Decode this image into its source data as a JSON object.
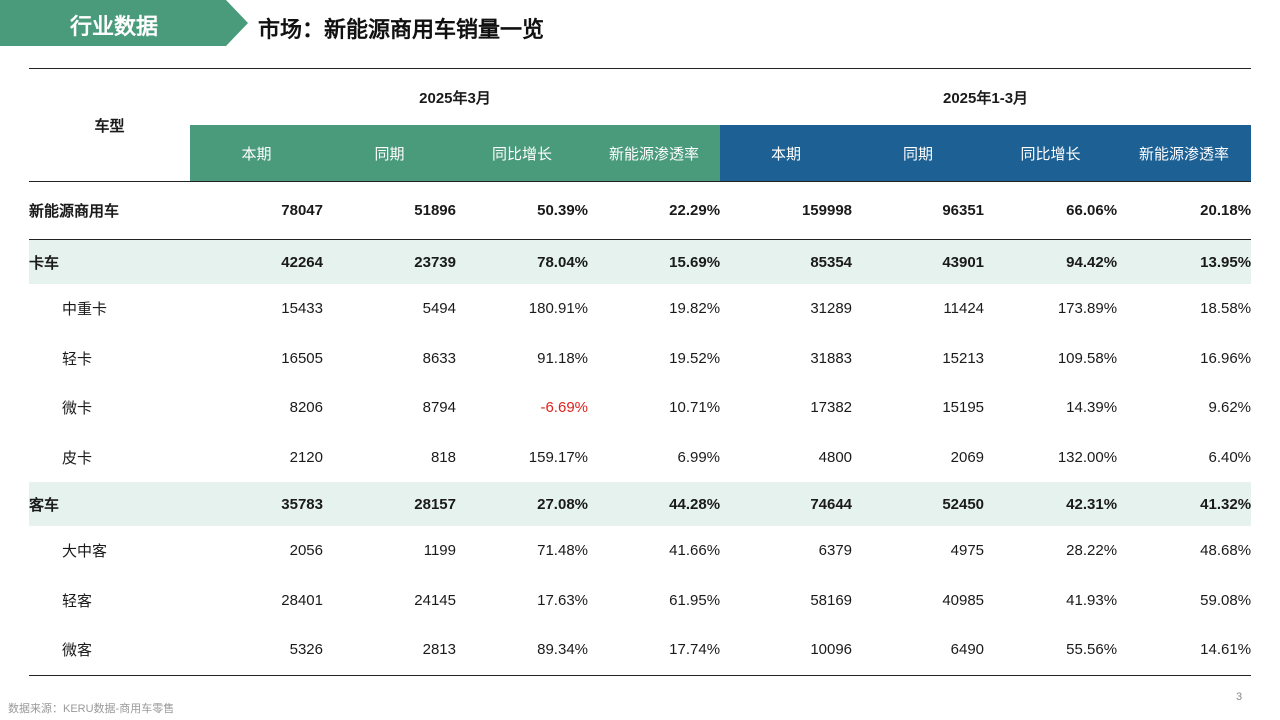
{
  "header": {
    "tag_label": "行业数据",
    "title": "市场：新能源商用车销量一览"
  },
  "table": {
    "cartype_label": "车型",
    "period_1": "2025年3月",
    "period_2": "2025年1-3月",
    "sub_headers": [
      "本期",
      "同期",
      "同比增长",
      "新能源渗透率",
      "本期",
      "同期",
      "同比增长",
      "新能源渗透率"
    ],
    "colors": {
      "green": "#4a9a7c",
      "blue": "#1d6094",
      "category_bg": "#e6f2ed",
      "negative": "#e0201b"
    },
    "rows": [
      {
        "name": "新能源商用车",
        "values": [
          "78047",
          "51896",
          "50.39%",
          "22.29%",
          "159998",
          "96351",
          "66.06%",
          "20.18%"
        ]
      },
      {
        "name": "卡车",
        "values": [
          "42264",
          "23739",
          "78.04%",
          "15.69%",
          "85354",
          "43901",
          "94.42%",
          "13.95%"
        ]
      },
      {
        "name": "中重卡",
        "values": [
          "15433",
          "5494",
          "180.91%",
          "19.82%",
          "31289",
          "11424",
          "173.89%",
          "18.58%"
        ]
      },
      {
        "name": "轻卡",
        "values": [
          "16505",
          "8633",
          "91.18%",
          "19.52%",
          "31883",
          "15213",
          "109.58%",
          "16.96%"
        ]
      },
      {
        "name": "微卡",
        "values": [
          "8206",
          "8794",
          "-6.69%",
          "10.71%",
          "17382",
          "15195",
          "14.39%",
          "9.62%"
        ]
      },
      {
        "name": "皮卡",
        "values": [
          "2120",
          "818",
          "159.17%",
          "6.99%",
          "4800",
          "2069",
          "132.00%",
          "6.40%"
        ]
      },
      {
        "name": "客车",
        "values": [
          "35783",
          "28157",
          "27.08%",
          "44.28%",
          "74644",
          "52450",
          "42.31%",
          "41.32%"
        ]
      },
      {
        "name": "大中客",
        "values": [
          "2056",
          "1199",
          "71.48%",
          "41.66%",
          "6379",
          "4975",
          "28.22%",
          "48.68%"
        ]
      },
      {
        "name": "轻客",
        "values": [
          "28401",
          "24145",
          "17.63%",
          "61.95%",
          "58169",
          "40985",
          "41.93%",
          "59.08%"
        ]
      },
      {
        "name": "微客",
        "values": [
          "5326",
          "2813",
          "89.34%",
          "17.74%",
          "10096",
          "6490",
          "55.56%",
          "14.61%"
        ]
      }
    ]
  },
  "footer": {
    "source": "数据来源：KERU数据-商用车零售",
    "page_number": "3"
  }
}
